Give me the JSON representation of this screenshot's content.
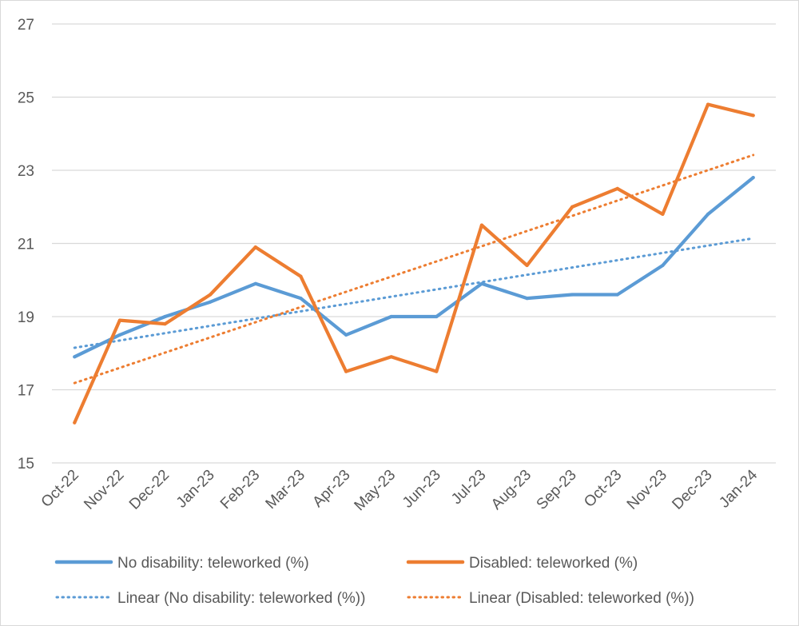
{
  "chart_data": {
    "type": "line",
    "title": "",
    "xlabel": "",
    "ylabel": "",
    "categories": [
      "Oct-22",
      "Nov-22",
      "Dec-22",
      "Jan-23",
      "Feb-23",
      "Mar-23",
      "Apr-23",
      "May-23",
      "Jun-23",
      "Jul-23",
      "Aug-23",
      "Sep-23",
      "Oct-23",
      "Nov-23",
      "Dec-23",
      "Jan-24"
    ],
    "ylim": [
      15,
      27
    ],
    "yticks": [
      15,
      17,
      19,
      21,
      23,
      25,
      27
    ],
    "grid": "horizontal",
    "legend_position": "bottom",
    "series": [
      {
        "name": "No disability: teleworked (%)",
        "color": "#5b9bd5",
        "style": "solid",
        "values": [
          17.9,
          18.5,
          19.0,
          19.4,
          19.9,
          19.5,
          18.5,
          19.0,
          19.0,
          19.9,
          19.5,
          19.6,
          19.6,
          20.4,
          21.8,
          22.8
        ]
      },
      {
        "name": "Disabled: teleworked (%)",
        "color": "#ed7d31",
        "style": "solid",
        "values": [
          16.1,
          18.9,
          18.8,
          19.6,
          20.9,
          20.1,
          17.5,
          17.9,
          17.5,
          21.5,
          20.4,
          22.0,
          22.5,
          21.8,
          24.8,
          24.5
        ]
      },
      {
        "name": "Linear (No disability: teleworked (%))",
        "color": "#5b9bd5",
        "style": "dotted",
        "trend_of": 0
      },
      {
        "name": "Linear (Disabled: teleworked (%))",
        "color": "#ed7d31",
        "style": "dotted",
        "trend_of": 1
      }
    ]
  }
}
